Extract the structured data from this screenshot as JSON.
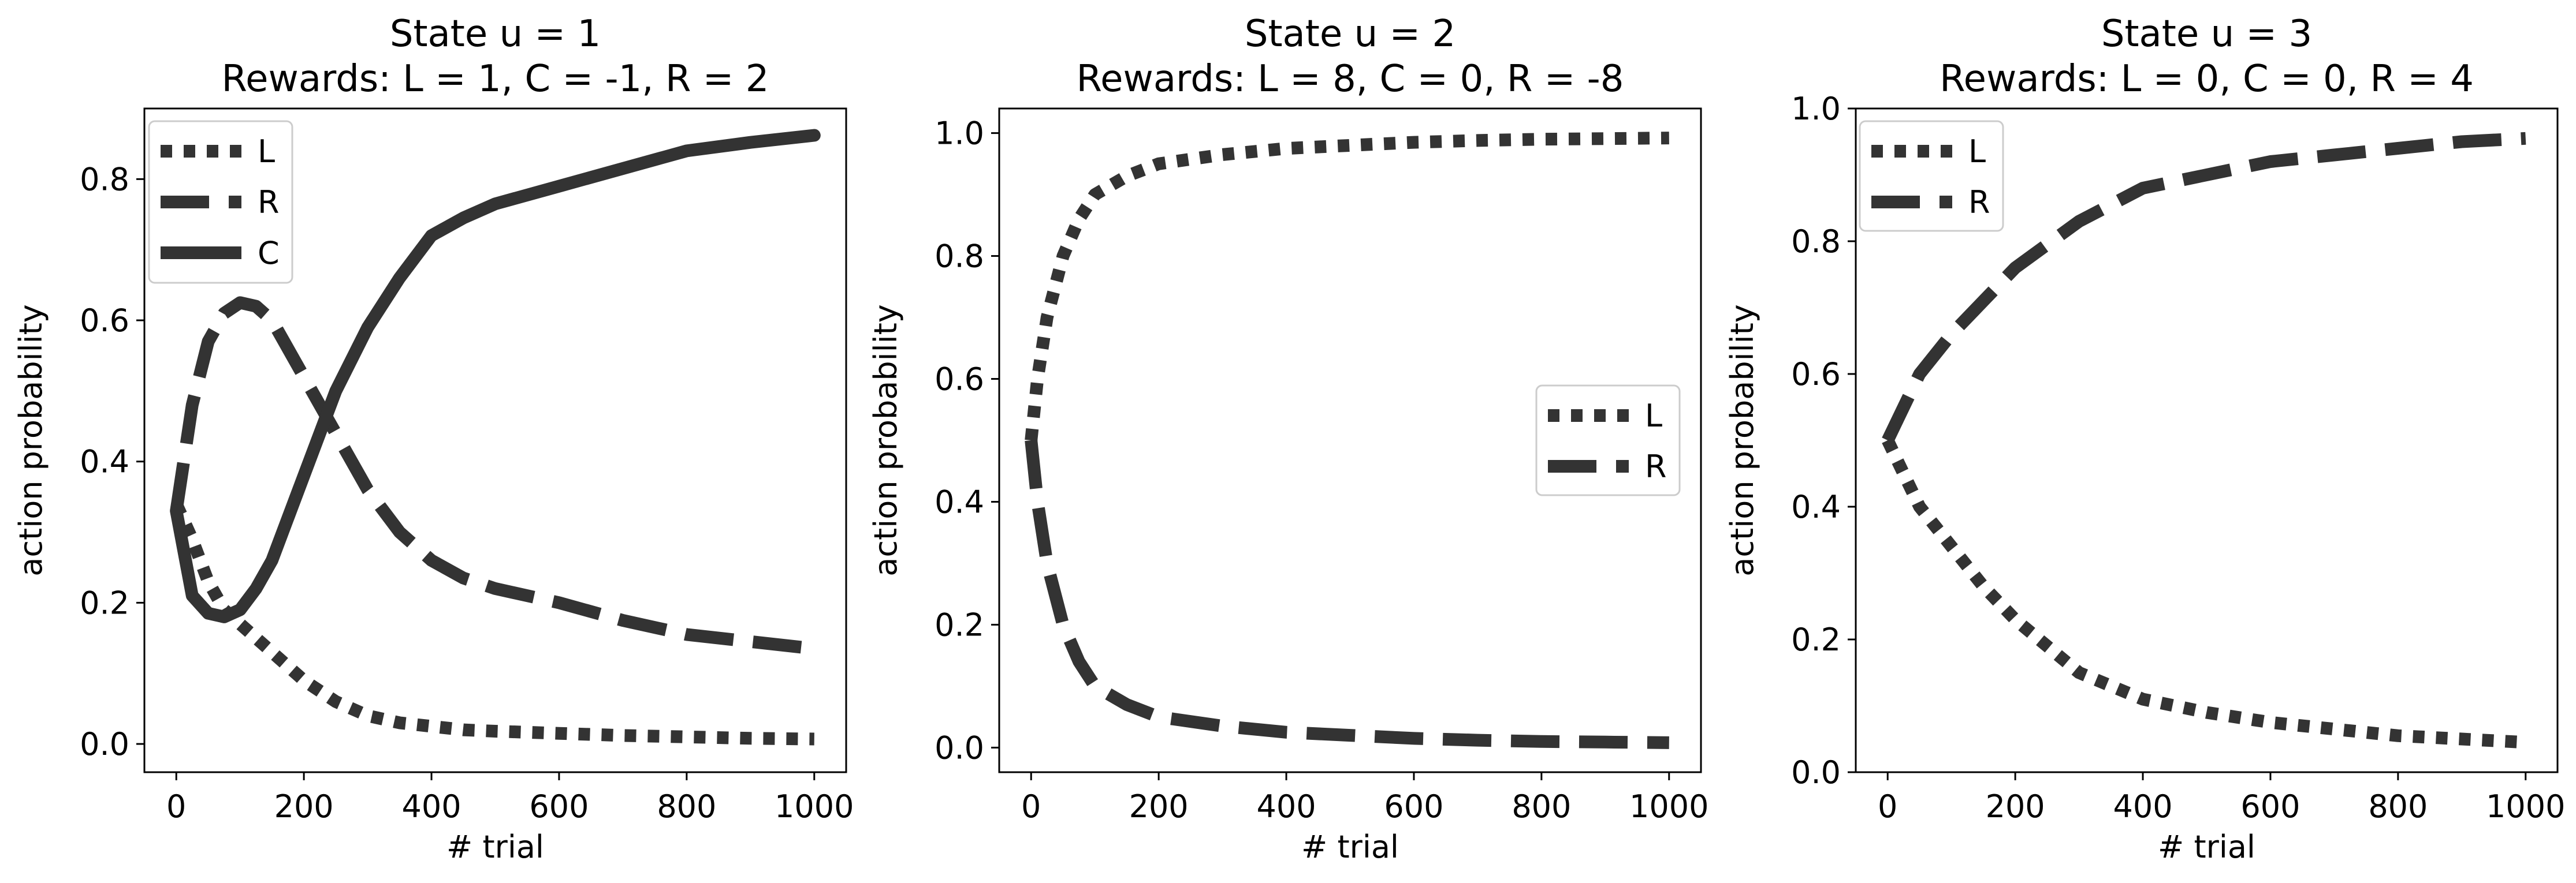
{
  "chart_data": [
    {
      "type": "line",
      "title": "State u = 1",
      "subtitle": "Rewards: L = 1, C = -1, R = 2",
      "xlabel": "# trial",
      "ylabel": "action probability",
      "xlim": [
        -50,
        1050
      ],
      "ylim": [
        -0.04,
        0.9
      ],
      "xticks": [
        0,
        200,
        400,
        600,
        800,
        1000
      ],
      "xtick_labels": [
        "0",
        "200",
        "400",
        "600",
        "800",
        "1000"
      ],
      "yticks": [
        0.0,
        0.2,
        0.4,
        0.6,
        0.8
      ],
      "ytick_labels": [
        "0.0",
        "0.2",
        "0.4",
        "0.6",
        "0.8"
      ],
      "legend_position": "upper-left",
      "grid": false,
      "x": [
        0,
        25,
        50,
        75,
        100,
        125,
        150,
        200,
        250,
        300,
        350,
        400,
        450,
        500,
        600,
        700,
        800,
        900,
        1000
      ],
      "series": [
        {
          "name": "L",
          "style": "dotted",
          "values": [
            0.34,
            0.29,
            0.23,
            0.19,
            0.17,
            0.15,
            0.13,
            0.09,
            0.06,
            0.04,
            0.03,
            0.025,
            0.02,
            0.018,
            0.015,
            0.012,
            0.01,
            0.008,
            0.007
          ]
        },
        {
          "name": "R",
          "style": "dashed",
          "values": [
            0.33,
            0.48,
            0.57,
            0.61,
            0.625,
            0.62,
            0.6,
            0.52,
            0.44,
            0.36,
            0.3,
            0.26,
            0.235,
            0.22,
            0.2,
            0.175,
            0.155,
            0.145,
            0.135
          ]
        },
        {
          "name": "C",
          "style": "solid",
          "values": [
            0.33,
            0.21,
            0.185,
            0.18,
            0.19,
            0.22,
            0.26,
            0.38,
            0.5,
            0.59,
            0.66,
            0.72,
            0.745,
            0.765,
            0.79,
            0.815,
            0.84,
            0.852,
            0.862
          ]
        }
      ]
    },
    {
      "type": "line",
      "title": "State u = 2",
      "subtitle": "Rewards: L = 8, C = 0, R = -8",
      "xlabel": "# trial",
      "ylabel": "action probability",
      "xlim": [
        -50,
        1050
      ],
      "ylim": [
        -0.04,
        1.04
      ],
      "xticks": [
        0,
        200,
        400,
        600,
        800,
        1000
      ],
      "xtick_labels": [
        "0",
        "200",
        "400",
        "600",
        "800",
        "1000"
      ],
      "yticks": [
        0.0,
        0.2,
        0.4,
        0.6,
        0.8,
        1.0
      ],
      "ytick_labels": [
        "0.0",
        "0.2",
        "0.4",
        "0.6",
        "0.8",
        "1.0"
      ],
      "legend_position": "center-right",
      "grid": false,
      "x": [
        0,
        10,
        25,
        50,
        75,
        100,
        150,
        200,
        300,
        400,
        500,
        600,
        700,
        800,
        900,
        1000
      ],
      "series": [
        {
          "name": "L",
          "style": "dotted",
          "values": [
            0.5,
            0.6,
            0.7,
            0.8,
            0.86,
            0.9,
            0.93,
            0.95,
            0.965,
            0.975,
            0.98,
            0.985,
            0.988,
            0.99,
            0.991,
            0.992
          ]
        },
        {
          "name": "R",
          "style": "dashed",
          "values": [
            0.5,
            0.4,
            0.3,
            0.2,
            0.14,
            0.1,
            0.07,
            0.05,
            0.035,
            0.025,
            0.02,
            0.015,
            0.012,
            0.01,
            0.009,
            0.008
          ]
        }
      ]
    },
    {
      "type": "line",
      "title": "State u = 3",
      "subtitle": "Rewards: L = 0, C = 0, R = 4",
      "xlabel": "# trial",
      "ylabel": "action probability",
      "xlim": [
        -50,
        1050
      ],
      "ylim": [
        0.0,
        1.0
      ],
      "xticks": [
        0,
        200,
        400,
        600,
        800,
        1000
      ],
      "xtick_labels": [
        "0",
        "200",
        "400",
        "600",
        "800",
        "1000"
      ],
      "yticks": [
        0.0,
        0.2,
        0.4,
        0.6,
        0.8,
        1.0
      ],
      "ytick_labels": [
        "0.0",
        "0.2",
        "0.4",
        "0.6",
        "0.8",
        "1.0"
      ],
      "legend_position": "upper-left",
      "grid": false,
      "x": [
        0,
        25,
        50,
        100,
        150,
        200,
        300,
        400,
        500,
        600,
        700,
        800,
        900,
        1000
      ],
      "series": [
        {
          "name": "L",
          "style": "dotted",
          "values": [
            0.5,
            0.45,
            0.4,
            0.34,
            0.28,
            0.23,
            0.15,
            0.11,
            0.09,
            0.075,
            0.065,
            0.055,
            0.05,
            0.045
          ]
        },
        {
          "name": "R",
          "style": "dashed",
          "values": [
            0.5,
            0.55,
            0.6,
            0.66,
            0.71,
            0.76,
            0.83,
            0.88,
            0.9,
            0.92,
            0.93,
            0.94,
            0.95,
            0.955
          ]
        }
      ]
    }
  ]
}
